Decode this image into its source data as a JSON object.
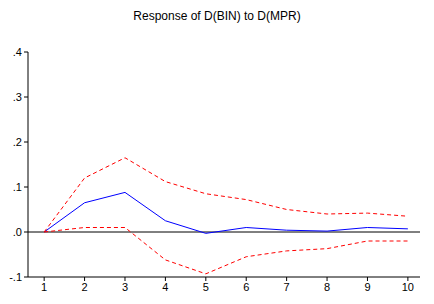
{
  "chart_data": {
    "type": "line",
    "title": "Response of D(BIN) to D(MPR)",
    "x": [
      1,
      2,
      3,
      4,
      5,
      6,
      7,
      8,
      9,
      10
    ],
    "xlim": [
      0.6,
      10.3
    ],
    "xticks": [
      1,
      2,
      3,
      4,
      5,
      6,
      7,
      8,
      9,
      10
    ],
    "ylim": [
      -0.1,
      0.4
    ],
    "yticks": [
      {
        "value": -0.1,
        "label": "-.1"
      },
      {
        "value": 0,
        "label": ".0"
      },
      {
        "value": 0.1,
        "label": ".1"
      },
      {
        "value": 0.2,
        "label": ".2"
      },
      {
        "value": 0.3,
        "label": ".3"
      },
      {
        "value": 0.4,
        "label": ".4"
      }
    ],
    "grid": false,
    "series": [
      {
        "color": "#0000ff",
        "line_style": "solid",
        "values": [
          0,
          0.065,
          0.088,
          0.025,
          -0.003,
          0.01,
          0.004,
          0.002,
          0.01,
          0.007
        ]
      },
      {
        "color": "#ff0000",
        "line_style": "dashed",
        "values": [
          0,
          0.12,
          0.165,
          0.112,
          0.085,
          0.072,
          0.05,
          0.04,
          0.042,
          0.035
        ]
      },
      {
        "color": "#ff0000",
        "line_style": "dashed",
        "values": [
          0,
          0.01,
          0.01,
          -0.062,
          -0.093,
          -0.055,
          -0.042,
          -0.037,
          -0.02,
          -0.02
        ]
      }
    ]
  }
}
